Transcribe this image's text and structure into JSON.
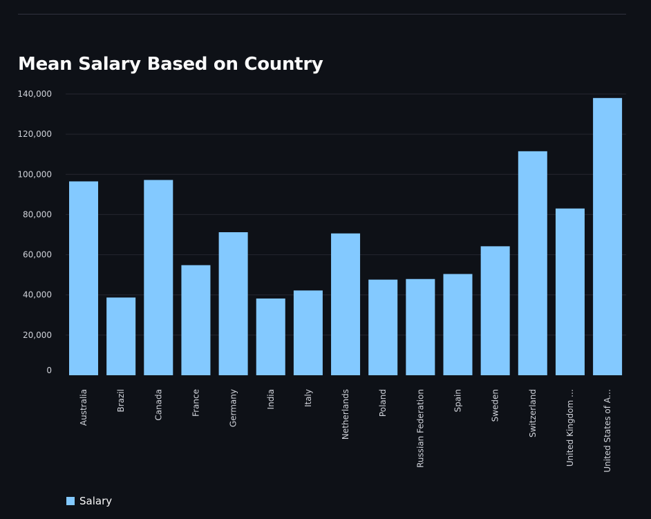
{
  "chart_data": {
    "type": "bar",
    "title": "Mean Salary Based on Country",
    "xlabel": "",
    "ylabel": "",
    "ylim": [
      0,
      140000
    ],
    "yticks": [
      0,
      20000,
      40000,
      60000,
      80000,
      100000,
      120000,
      140000
    ],
    "ytick_labels": [
      "0",
      "20,000",
      "40,000",
      "60,000",
      "80,000",
      "100,000",
      "120,000",
      "140,000"
    ],
    "categories": [
      "Australia",
      "Brazil",
      "Canada",
      "France",
      "Germany",
      "India",
      "Italy",
      "Netherlands",
      "Poland",
      "Russian Federation",
      "Spain",
      "Sweden",
      "Switzerland",
      "United Kingdom …",
      "United States of A…"
    ],
    "series": [
      {
        "name": "Salary",
        "color": "#83c9ff",
        "values": [
          96500,
          38700,
          97200,
          54800,
          71200,
          38200,
          42200,
          70600,
          47600,
          47900,
          50400,
          64200,
          111500,
          83000,
          138000
        ]
      }
    ],
    "legend": {
      "position": "bottom-left",
      "entries": [
        "Salary"
      ]
    },
    "grid": true
  },
  "colors": {
    "background": "#0e1117",
    "bar": "#83c9ff",
    "grid": "#262730",
    "text": "#fafafa",
    "tick": "#d0d3da"
  }
}
